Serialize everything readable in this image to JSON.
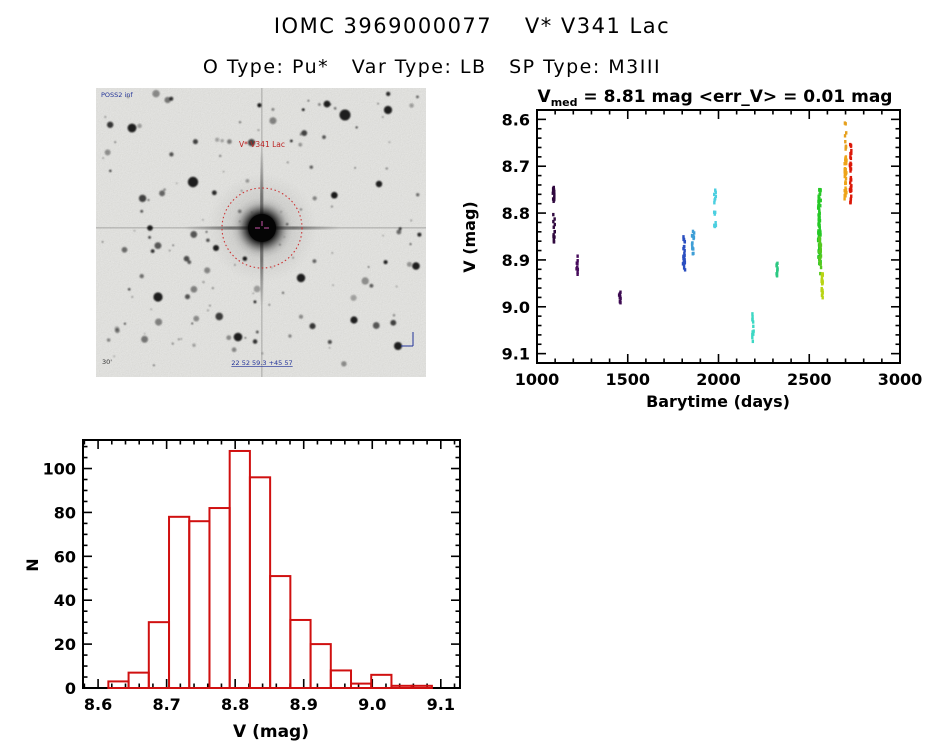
{
  "header": {
    "title": "IOMC 3969000077    V* V341 Lac",
    "subtitle": "O Type: Pu*   Var Type: LB   SP Type: M3III"
  },
  "finding_chart": {
    "target_label": "V* V341 Lac",
    "survey_label": "POSS2 inf",
    "coords_label": "22 52 59.3 +45 57",
    "scale_label": "30'",
    "circle_color": "#cc3333",
    "annotation_color": "#223399",
    "target_label_color": "#bb2222"
  },
  "chart_data": [
    {
      "type": "scatter",
      "title_v": "V",
      "title_sub": "med",
      "title_rest": " = 8.81 mag <err_V> = 0.01 mag",
      "xlabel": "Barytime (days)",
      "ylabel": "V (mag)",
      "xlim": [
        1000,
        3000
      ],
      "ylim": [
        8.58,
        9.12
      ],
      "y_inverted_magnitude_axis": true,
      "xticks": [
        1000,
        1500,
        2000,
        2500,
        3000
      ],
      "yticks": [
        8.6,
        8.7,
        8.8,
        8.9,
        9.0,
        9.1
      ],
      "x_minor_step": 100,
      "y_minor_step": 0.02,
      "grid": false,
      "legend": "none",
      "clusters": [
        {
          "t": 1092,
          "t_spread": 10,
          "v_min": 8.744,
          "v_max": 8.776,
          "n": 16,
          "color": "#30093f"
        },
        {
          "t": 1094,
          "t_spread": 10,
          "v_min": 8.798,
          "v_max": 8.862,
          "n": 14,
          "color": "#30093f"
        },
        {
          "t": 1220,
          "t_spread": 10,
          "v_min": 8.884,
          "v_max": 8.936,
          "n": 11,
          "color": "#470c5c"
        },
        {
          "t": 1457,
          "t_spread": 10,
          "v_min": 8.958,
          "v_max": 8.992,
          "n": 10,
          "color": "#3d0a52"
        },
        {
          "t": 1810,
          "t_spread": 12,
          "v_min": 8.848,
          "v_max": 8.924,
          "n": 26,
          "color": "#2a4ec0"
        },
        {
          "t": 1860,
          "t_spread": 12,
          "v_min": 8.836,
          "v_max": 8.888,
          "n": 18,
          "color": "#3e9ed6"
        },
        {
          "t": 1981,
          "t_spread": 10,
          "v_min": 8.748,
          "v_max": 8.84,
          "n": 15,
          "color": "#4ccfe0"
        },
        {
          "t": 2190,
          "t_spread": 8,
          "v_min": 9.006,
          "v_max": 9.074,
          "n": 13,
          "color": "#3ed8c4"
        },
        {
          "t": 2322,
          "t_spread": 8,
          "v_min": 8.906,
          "v_max": 8.936,
          "n": 11,
          "color": "#2cc882"
        },
        {
          "t": 2556,
          "t_spread": 14,
          "v_min": 8.748,
          "v_max": 8.908,
          "n": 85,
          "color": "#26c826"
        },
        {
          "t": 2560,
          "t_spread": 10,
          "v_min": 8.85,
          "v_max": 8.93,
          "n": 25,
          "color": "#55c81e"
        },
        {
          "t": 2572,
          "t_spread": 9,
          "v_min": 8.928,
          "v_max": 8.986,
          "n": 20,
          "color": "#b8d414"
        },
        {
          "t": 2700,
          "t_spread": 8,
          "v_min": 8.606,
          "v_max": 8.664,
          "n": 9,
          "color": "#e6a01e"
        },
        {
          "t": 2700,
          "t_spread": 11,
          "v_min": 8.676,
          "v_max": 8.77,
          "n": 30,
          "color": "#eea418"
        },
        {
          "t": 2728,
          "t_spread": 9,
          "v_min": 8.652,
          "v_max": 8.778,
          "n": 36,
          "color": "#dc1808"
        }
      ]
    },
    {
      "type": "bar",
      "title": "",
      "xlabel": "V (mag)",
      "ylabel": "N",
      "xlim": [
        8.578,
        9.128
      ],
      "ylim": [
        0,
        113
      ],
      "xticks": [
        8.6,
        8.7,
        8.8,
        8.9,
        9.0,
        9.1
      ],
      "yticks": [
        0,
        20,
        40,
        60,
        80,
        100
      ],
      "x_minor_step": 0.02,
      "y_minor_step": 5,
      "bin_start": 8.615,
      "bin_width": 0.0295,
      "counts": [
        3,
        7,
        30,
        78,
        76,
        82,
        108,
        96,
        51,
        31,
        20,
        8,
        2,
        6,
        1,
        1
      ],
      "bar_color": "#d01010",
      "grid": false,
      "legend": "none"
    }
  ]
}
